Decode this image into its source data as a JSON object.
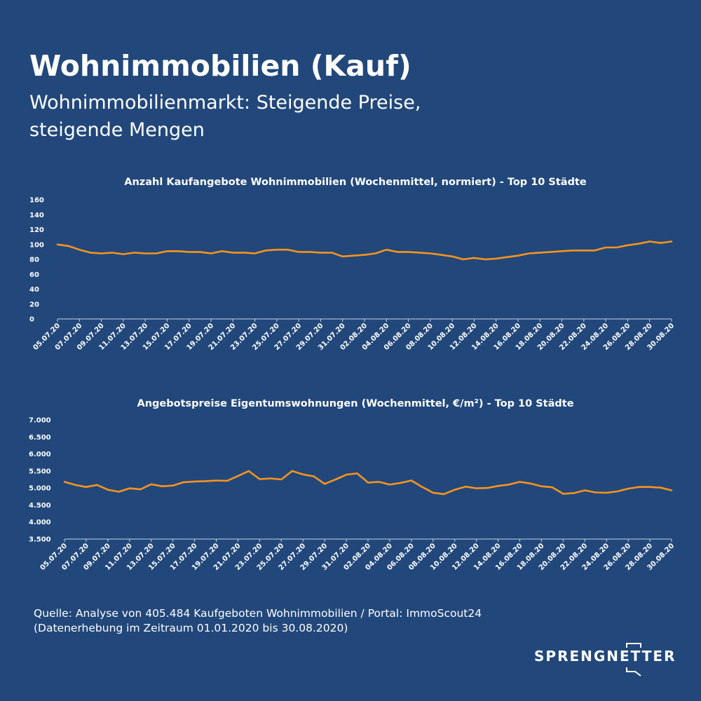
{
  "header": {
    "title": "Wohnimmobilien (Kauf)",
    "subtitle_line1": "Wohnimmobilienmarkt: Steigende Preise,",
    "subtitle_line2": "steigende Mengen"
  },
  "colors": {
    "background": "#21477b",
    "line": "#f7941d",
    "text": "#ffffff"
  },
  "chart_data": [
    {
      "type": "line",
      "title": "Anzahl Kaufangebote Wohnimmobilien (Wochenmittel, normiert) - Top 10 Städte",
      "ylim": [
        0,
        160
      ],
      "y_ticks": [
        "0",
        "20",
        "40",
        "60",
        "80",
        "100",
        "120",
        "140",
        "160"
      ],
      "y_tick_values": [
        0,
        20,
        40,
        60,
        80,
        100,
        120,
        140,
        160
      ],
      "x_tick_labels": [
        "05.07.20",
        "07.07.20",
        "09.07.20",
        "11.07.20",
        "13.07.20",
        "15.07.20",
        "17.07.20",
        "19.07.20",
        "21.07.20",
        "23.07.20",
        "25.07.20",
        "27.07.20",
        "29.07.20",
        "31.07.20",
        "02.08.20",
        "04.08.20",
        "06.08.20",
        "08.08.20",
        "10.08.20",
        "12.08.20",
        "14.08.20",
        "16.08.20",
        "18.08.20",
        "20.08.20",
        "22.08.20",
        "24.08.20",
        "26.08.20",
        "28.08.20",
        "30.08.20"
      ],
      "grid": false,
      "series": [
        {
          "values": [
            100,
            98,
            93,
            89,
            88,
            89,
            87,
            89,
            88,
            88,
            91,
            91,
            90,
            90,
            88,
            91,
            89,
            89,
            88,
            92,
            93,
            93,
            90,
            90,
            89,
            89,
            84,
            85,
            86,
            88,
            93,
            90,
            90,
            89,
            88,
            86,
            84,
            80,
            82,
            80,
            81,
            83,
            85,
            88,
            89,
            90,
            91,
            92,
            92,
            92,
            96,
            96,
            99,
            101,
            104,
            102,
            104
          ]
        }
      ]
    },
    {
      "type": "line",
      "title": "Angebotspreise Eigentumswohnungen (Wochenmittel, €/m²) - Top 10 Städte",
      "ylim": [
        3500,
        7000
      ],
      "y_ticks": [
        "3.500",
        "4.000",
        "4.500",
        "5.000",
        "5.500",
        "6.000",
        "6.500",
        "7.000"
      ],
      "y_tick_values": [
        3500,
        4000,
        4500,
        5000,
        5500,
        6000,
        6500,
        7000
      ],
      "x_tick_labels": [
        "05.07.20",
        "07.07.20",
        "09.07.20",
        "11.07.20",
        "13.07.20",
        "15.07.20",
        "17.07.20",
        "19.07.20",
        "21.07.20",
        "23.07.20",
        "25.07.20",
        "27.07.20",
        "29.07.20",
        "31.07.20",
        "02.08.20",
        "04.08.20",
        "06.08.20",
        "08.08.20",
        "10.08.20",
        "12.08.20",
        "14.08.20",
        "16.08.20",
        "18.08.20",
        "20.08.20",
        "22.08.20",
        "24.08.20",
        "26.08.20",
        "28.08.20",
        "30.08.20"
      ],
      "grid": false,
      "series": [
        {
          "values": [
            5180,
            5090,
            5030,
            5090,
            4950,
            4890,
            4990,
            4960,
            5110,
            5050,
            5070,
            5170,
            5190,
            5200,
            5220,
            5210,
            5350,
            5500,
            5260,
            5280,
            5250,
            5500,
            5400,
            5340,
            5120,
            5250,
            5390,
            5430,
            5160,
            5180,
            5100,
            5150,
            5220,
            5030,
            4860,
            4820,
            4950,
            5040,
            4990,
            5000,
            5060,
            5100,
            5180,
            5130,
            5050,
            5020,
            4830,
            4850,
            4930,
            4870,
            4860,
            4900,
            4980,
            5030,
            5030,
            5010,
            4930
          ]
        }
      ]
    }
  ],
  "source": {
    "line1": "Quelle: Analyse von 405.484 Kaufgeboten Wohnimmobilien / Portal: ImmoScout24",
    "line2": "(Datenerhebung im Zeitraum 01.01.2020 bis 30.08.2020)"
  },
  "logo": {
    "text": "SPRENGNETTER"
  }
}
